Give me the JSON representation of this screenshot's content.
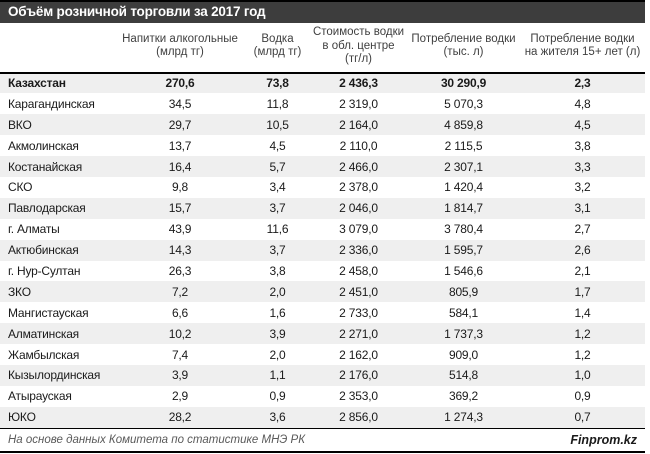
{
  "title": "Объём розничной торговли за 2017 год",
  "colors": {
    "title_bar_bg": "#3d3d3d",
    "title_text": "#ffffff",
    "row_alt_bg": "#efefef",
    "body_text": "#1a1a1a",
    "header_text": "#3f3f3f",
    "border": "#000000",
    "footer_text": "#595959"
  },
  "chart_data": {
    "type": "table",
    "title": "Объём розничной торговли за 2017 год",
    "column_header_lines": [
      [
        ""
      ],
      [
        "Напитки алкогольные",
        "(млрд тг)"
      ],
      [
        "Водка",
        "(млрд тг)"
      ],
      [
        "Стоимость водки",
        "в обл. центре",
        "(тг/л)"
      ],
      [
        "Потребление водки",
        "(тыс. л)"
      ],
      [
        "Потребление водки",
        "на жителя 15+ лет (л)"
      ]
    ],
    "rows": [
      {
        "region": "Казахстан",
        "values": [
          "270,6",
          "73,8",
          "2 436,3",
          "30 290,9",
          "2,3"
        ],
        "emphasis": true
      },
      {
        "region": "Карагандинская",
        "values": [
          "34,5",
          "11,8",
          "2 319,0",
          "5 070,3",
          "4,8"
        ],
        "emphasis": false
      },
      {
        "region": "ВКО",
        "values": [
          "29,7",
          "10,5",
          "2 164,0",
          "4 859,8",
          "4,5"
        ],
        "emphasis": false
      },
      {
        "region": "Акмолинская",
        "values": [
          "13,7",
          "4,5",
          "2 110,0",
          "2 115,5",
          "3,8"
        ],
        "emphasis": false
      },
      {
        "region": "Костанайская",
        "values": [
          "16,4",
          "5,7",
          "2 466,0",
          "2 307,1",
          "3,3"
        ],
        "emphasis": false
      },
      {
        "region": "СКО",
        "values": [
          "9,8",
          "3,4",
          "2 378,0",
          "1 420,4",
          "3,2"
        ],
        "emphasis": false
      },
      {
        "region": "Павлодарская",
        "values": [
          "15,7",
          "3,7",
          "2 046,0",
          "1 814,7",
          "3,1"
        ],
        "emphasis": false
      },
      {
        "region": "г. Алматы",
        "values": [
          "43,9",
          "11,6",
          "3 079,0",
          "3 780,4",
          "2,7"
        ],
        "emphasis": false
      },
      {
        "region": "Актюбинская",
        "values": [
          "14,3",
          "3,7",
          "2 336,0",
          "1 595,7",
          "2,6"
        ],
        "emphasis": false
      },
      {
        "region": "г. Нур-Султан",
        "values": [
          "26,3",
          "3,8",
          "2 458,0",
          "1 546,6",
          "2,1"
        ],
        "emphasis": false
      },
      {
        "region": "ЗКО",
        "values": [
          "7,2",
          "2,0",
          "2 451,0",
          "805,9",
          "1,7"
        ],
        "emphasis": false
      },
      {
        "region": "Мангистауская",
        "values": [
          "6,6",
          "1,6",
          "2 733,0",
          "584,1",
          "1,4"
        ],
        "emphasis": false
      },
      {
        "region": "Алматинская",
        "values": [
          "10,2",
          "3,9",
          "2 271,0",
          "1 737,3",
          "1,2"
        ],
        "emphasis": false
      },
      {
        "region": "Жамбылская",
        "values": [
          "7,4",
          "2,0",
          "2 162,0",
          "909,0",
          "1,2"
        ],
        "emphasis": false
      },
      {
        "region": "Кызылординская",
        "values": [
          "3,9",
          "1,1",
          "2 176,0",
          "514,8",
          "1,0"
        ],
        "emphasis": false
      },
      {
        "region": "Атырауская",
        "values": [
          "2,9",
          "0,9",
          "2 353,0",
          "369,2",
          "0,9"
        ],
        "emphasis": false
      },
      {
        "region": "ЮКО",
        "values": [
          "28,2",
          "3,6",
          "2 856,0",
          "1 274,3",
          "0,7"
        ],
        "emphasis": false
      }
    ]
  },
  "footer": {
    "source": "На основе данных Комитета по статистике МНЭ РК",
    "brand": "Finprom.kz"
  }
}
